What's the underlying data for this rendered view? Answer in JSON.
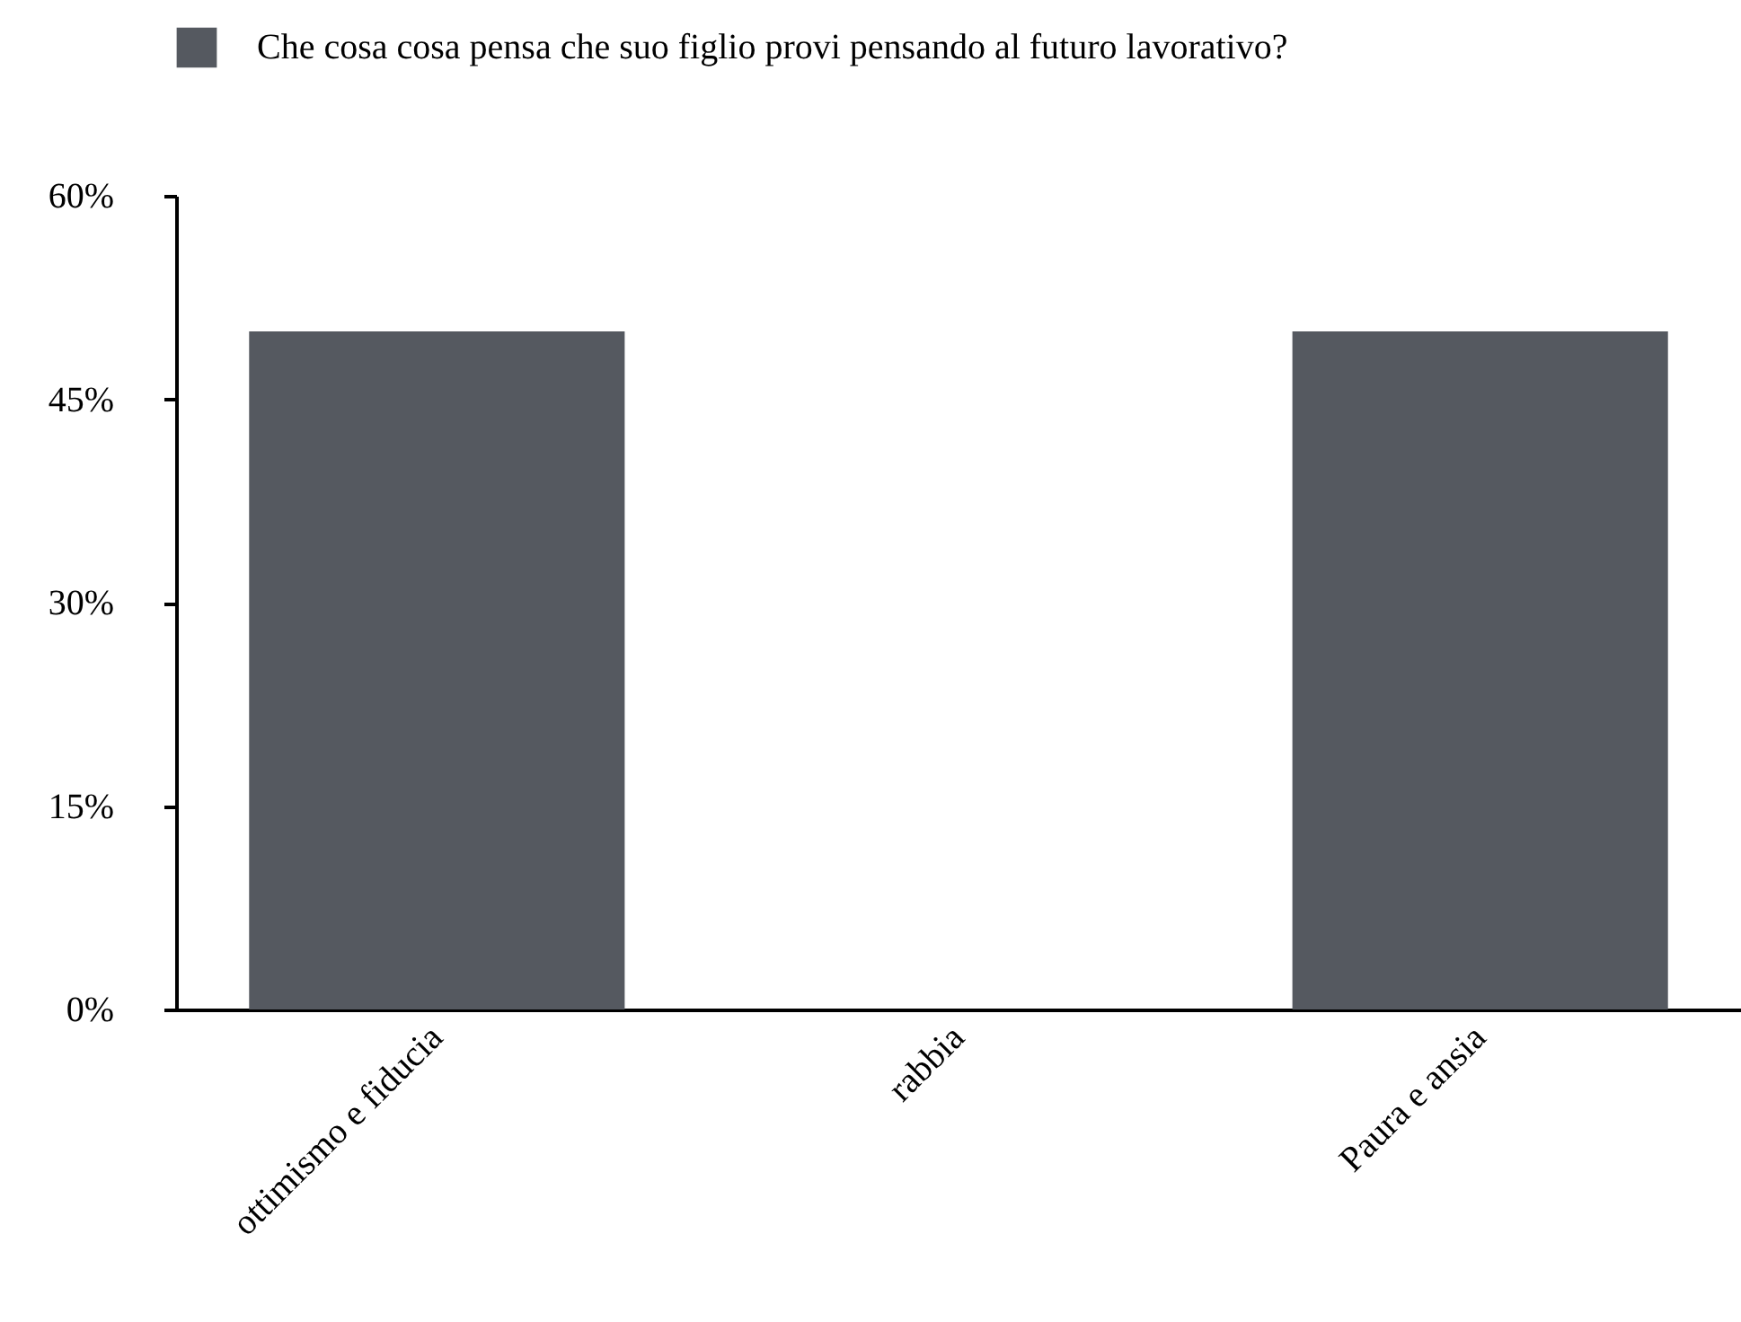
{
  "chart_data": {
    "type": "bar",
    "categories": [
      "ottimismo e fiducia",
      "rabbia",
      "Paura e ansia"
    ],
    "series": [
      {
        "name": "Che cosa cosa pensa che suo figlio provi pensando al futuro lavorativo?",
        "color": "#555960",
        "values": [
          50,
          0,
          50
        ]
      }
    ],
    "ylim": [
      0,
      60
    ],
    "yticks": [
      {
        "value": 0,
        "label": "0%"
      },
      {
        "value": 15,
        "label": "15%"
      },
      {
        "value": 30,
        "label": "30%"
      },
      {
        "value": 45,
        "label": "45%"
      },
      {
        "value": 60,
        "label": "60%"
      }
    ],
    "grid": false,
    "legend": "top"
  }
}
